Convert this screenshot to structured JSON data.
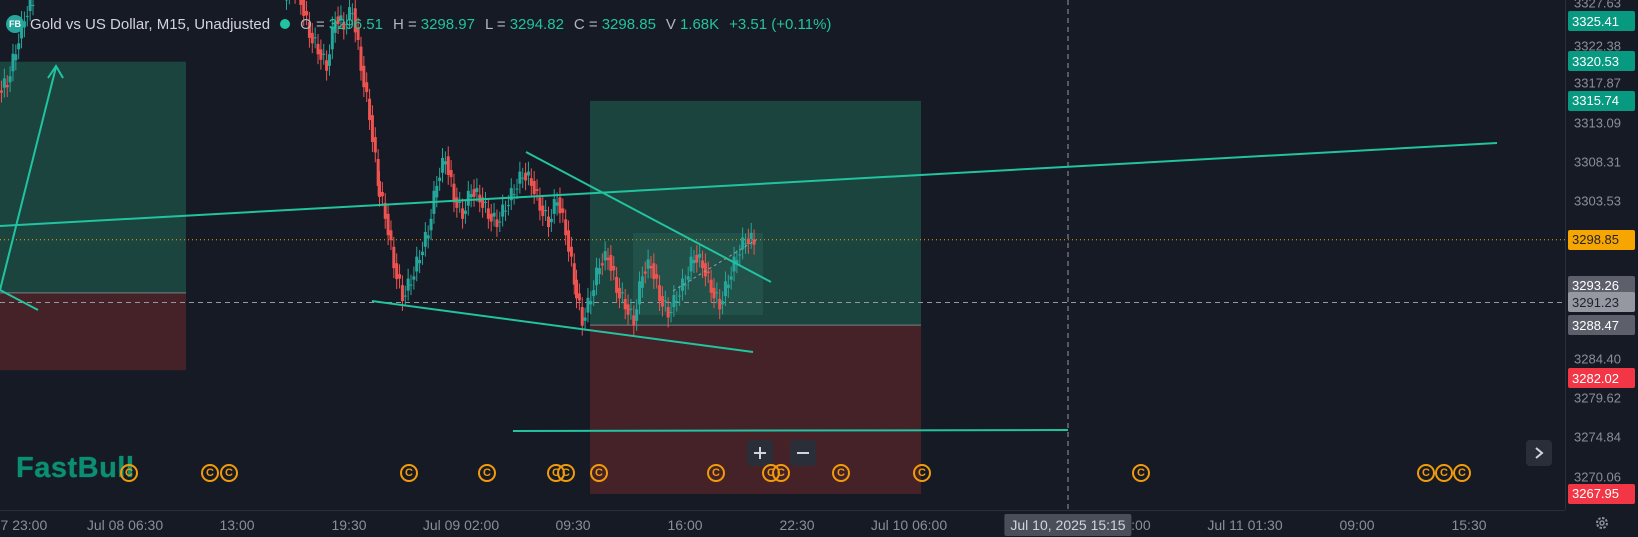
{
  "header": {
    "logo": "FB",
    "symbol": "Gold vs US Dollar, M15, Unadjusted",
    "open_label": "O =",
    "open": "3296.51",
    "high_label": "H =",
    "high": "3298.97",
    "low_label": "L =",
    "low": "3294.82",
    "close_label": "C =",
    "close": "3298.85",
    "volume_label": "V",
    "volume": "1.68K",
    "change": "+3.51 (+0.11%)"
  },
  "brand": "FastBull",
  "price_scale": {
    "min": 3266.0,
    "max": 3328.0,
    "ticks": [
      "3327.63",
      "3322.38",
      "3317.87",
      "3313.09",
      "3308.31",
      "3303.53",
      "3284.40",
      "3279.62",
      "3274.84",
      "3270.06"
    ],
    "tick_values": [
      3327.63,
      3322.38,
      3317.87,
      3313.09,
      3308.31,
      3303.53,
      3284.4,
      3279.62,
      3274.84,
      3270.06
    ]
  },
  "price_labels": [
    {
      "text": "3325.41",
      "value": 3325.41,
      "color": "#089981"
    },
    {
      "text": "3320.53",
      "value": 3320.53,
      "color": "#089981"
    },
    {
      "text": "3315.74",
      "value": 3315.74,
      "color": "#089981"
    },
    {
      "text": "3298.85",
      "value": 3298.85,
      "color": "#f7a600",
      "text_color": "#1e222d"
    },
    {
      "text": "3293.26",
      "value": 3293.26,
      "color": "#5d606b"
    },
    {
      "text": "3291.23",
      "value": 3291.23,
      "color": "#9598a1",
      "text_color": "#1e222d"
    },
    {
      "text": "3288.47",
      "value": 3288.47,
      "color": "#5d606b"
    },
    {
      "text": "3282.02",
      "value": 3282.02,
      "color": "#f23645"
    },
    {
      "text": "3267.95",
      "value": 3267.95,
      "color": "#f23645"
    }
  ],
  "time_axis": {
    "labels": [
      "07 23:00",
      "Jul 08 06:30",
      "13:00",
      "19:30",
      "Jul 09 02:00",
      "09:30",
      "16:00",
      "22:30",
      "Jul 10 06:00",
      "9:00",
      "Jul 11 01:30",
      "09:00",
      "15:30"
    ],
    "crosshair": "Jul 10, 2025 15:15"
  },
  "events": {
    "icon": "C",
    "count": 21
  },
  "colors": {
    "bg": "#161a25",
    "up": "#26a69a",
    "down": "#ef5350",
    "line": "#22c39f",
    "profit_zone": "#1c4c44",
    "loss_zone": "#4a2428",
    "last_price": "#f7a600"
  },
  "chart_data": {
    "type": "candlestick",
    "timeframe": "M15",
    "ylim": [
      3266.0,
      3328.0
    ],
    "last_price": 3298.85,
    "crosshair_price": 3291.23,
    "close_path": [
      3318,
      3322,
      3326,
      3328,
      3330,
      3328,
      3324,
      3322,
      3320,
      3326,
      3325,
      3327,
      3320,
      3314,
      3306,
      3302,
      3296,
      3292,
      3294,
      3297,
      3300,
      3306,
      3309,
      3304,
      3302,
      3305,
      3304,
      3302,
      3301,
      3303,
      3305,
      3307,
      3306,
      3303,
      3301,
      3304,
      3300,
      3294,
      3289,
      3292,
      3296,
      3297,
      3293,
      3291,
      3289,
      3295,
      3296,
      3292,
      3290,
      3292,
      3294,
      3297,
      3296,
      3293,
      3291,
      3294,
      3297,
      3299,
      3298.85
    ],
    "long_positions": [
      {
        "entry": 3292.4,
        "take_profit": 3320.5,
        "stop_loss": 3283.0
      },
      {
        "entry": 3288.47,
        "take_profit": 3315.74,
        "stop_loss": 3267.95
      }
    ],
    "trend_lines": [
      {
        "from": [
          "Jul 08 13:00",
          3293.3
        ],
        "to": [
          "Jul 11 03:00",
          3308.8
        ]
      },
      {
        "from": [
          "Jul 09 02:00",
          3307.7
        ],
        "to": [
          "Jul 09 19:30",
          3292.3
        ]
      },
      {
        "from": [
          "Jul 08 20:00",
          3289.9
        ],
        "to": [
          "Jul 09 19:30",
          3284.2
        ]
      },
      {
        "from": [
          "Jul 09 02:30",
          3275.1
        ],
        "to": [
          "Jul 10 15:15",
          3275.2
        ]
      }
    ]
  }
}
